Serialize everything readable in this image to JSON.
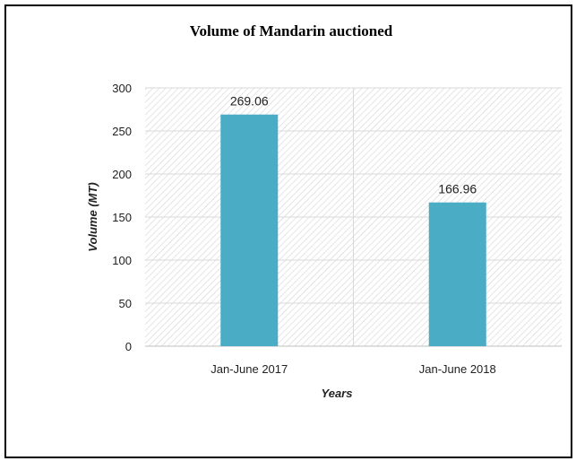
{
  "chart_data": {
    "type": "bar",
    "title": "Volume of Mandarin auctioned",
    "xlabel": "Years",
    "ylabel": "Volume (MT)",
    "categories": [
      "Jan-June 2017",
      "Jan-June 2018"
    ],
    "values": [
      269.06,
      166.96
    ],
    "value_labels": [
      "269.06",
      "166.96"
    ],
    "ylim": [
      0,
      300
    ],
    "yticks": [
      0,
      50,
      100,
      150,
      200,
      250,
      300
    ],
    "grid": true,
    "bar_color": "#4BACC6",
    "grid_color": "#d9d9d9"
  }
}
